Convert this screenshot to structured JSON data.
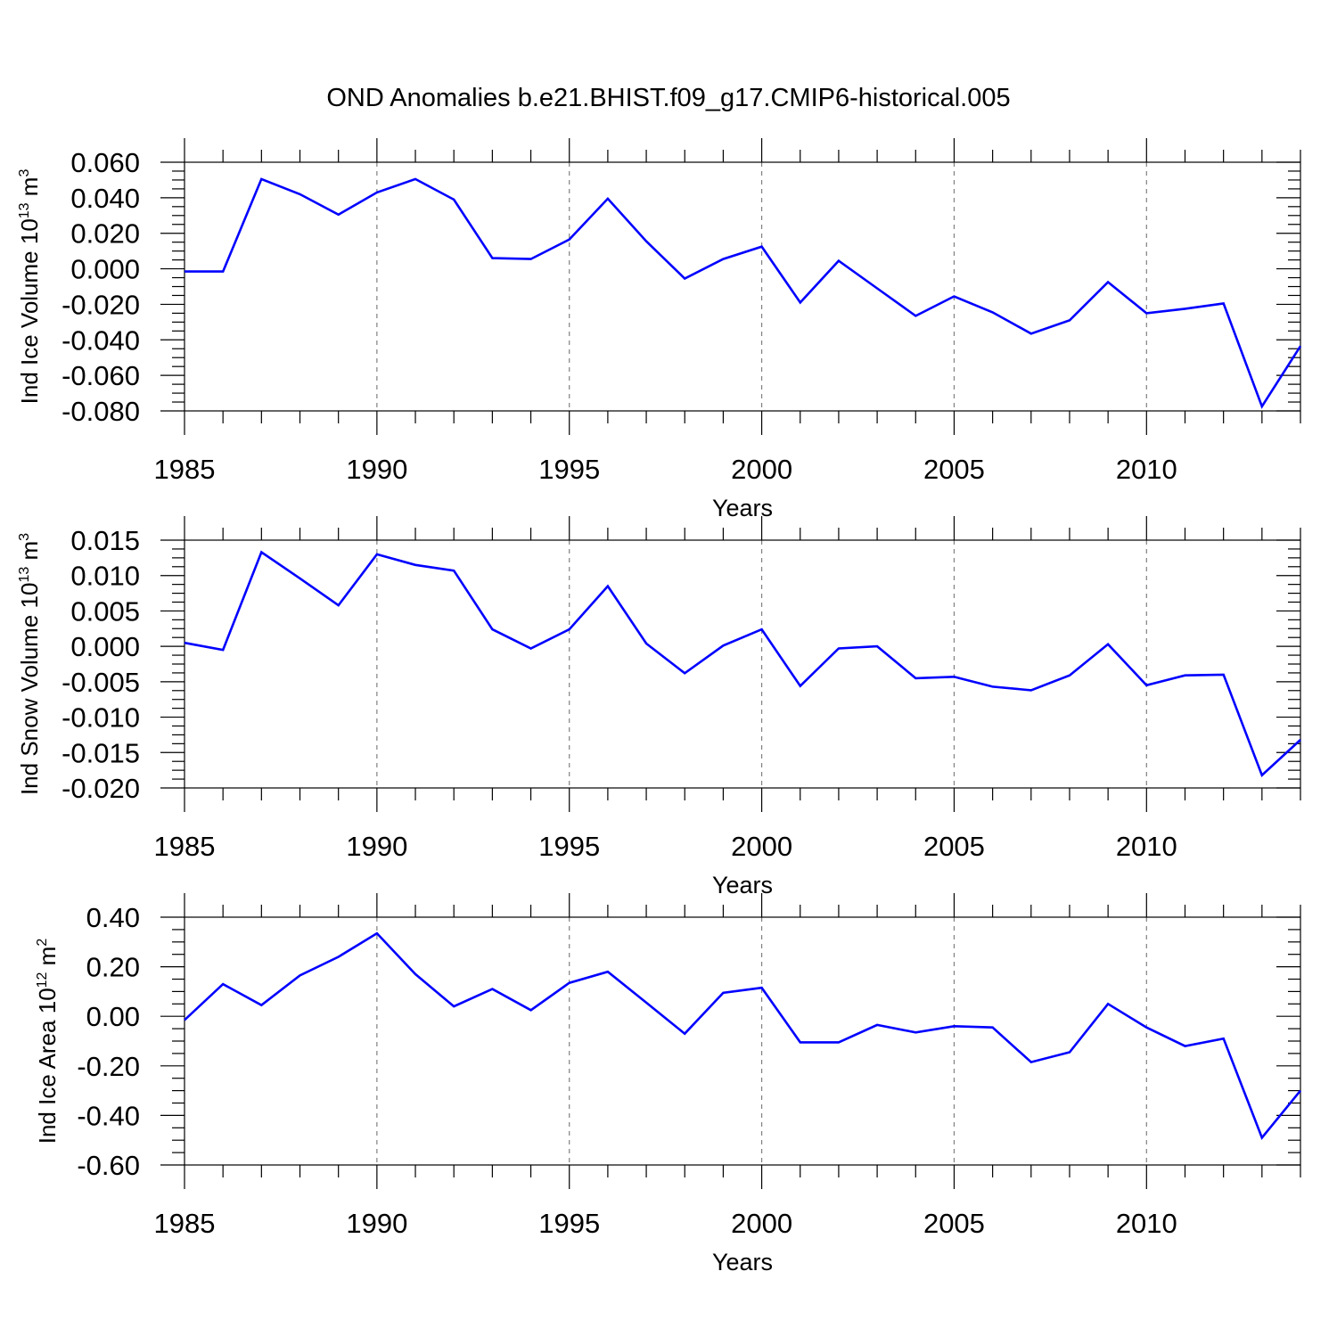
{
  "title": "OND Anomalies b.e21.BHIST.f09_g17.CMIP6-historical.005",
  "style": {
    "line_color": "#0000ff",
    "axis_color": "#000000",
    "grid_color": "#808080"
  },
  "chart_data": [
    {
      "type": "line",
      "ylabel": "Ind Ice Volume 10",
      "ylabel_exp": "13",
      "ylabel_unit": " m",
      "ylabel_unit_exp": "3",
      "xlabel": "Years",
      "xlim": [
        1985,
        2014
      ],
      "ylim": [
        -0.08,
        0.06
      ],
      "x_ticks": [
        "1985",
        "1990",
        "1995",
        "2000",
        "2005",
        "2010"
      ],
      "y_ticks": [
        "0.060",
        "0.040",
        "0.020",
        "0.000",
        "-0.020",
        "-0.040",
        "-0.060",
        "-0.080"
      ],
      "grid": "vertical dashed at 1990, 1995, 2000, 2005, 2010",
      "x": [
        1985,
        1986,
        1987,
        1988,
        1989,
        1990,
        1991,
        1992,
        1993,
        1994,
        1995,
        1996,
        1997,
        1998,
        1999,
        2000,
        2001,
        2002,
        2003,
        2004,
        2005,
        2006,
        2007,
        2008,
        2009,
        2010,
        2011,
        2012,
        2013,
        2014
      ],
      "values": [
        -0.0015,
        -0.0015,
        0.0505,
        0.042,
        0.0305,
        0.043,
        0.0505,
        0.039,
        0.006,
        0.0055,
        0.0165,
        0.0395,
        0.0155,
        -0.0055,
        0.0055,
        0.0125,
        -0.019,
        0.0045,
        -0.011,
        -0.0265,
        -0.0155,
        -0.0245,
        -0.0365,
        -0.029,
        -0.0075,
        -0.025,
        -0.0225,
        -0.0195,
        -0.0775,
        -0.0435
      ]
    },
    {
      "type": "line",
      "ylabel": "Ind Snow Volume 10",
      "ylabel_exp": "13",
      "ylabel_unit": " m",
      "ylabel_unit_exp": "3",
      "xlabel": "Years",
      "xlim": [
        1985,
        2014
      ],
      "ylim": [
        -0.02,
        0.015
      ],
      "x_ticks": [
        "1985",
        "1990",
        "1995",
        "2000",
        "2005",
        "2010"
      ],
      "y_ticks": [
        "0.015",
        "0.010",
        "0.005",
        "0.000",
        "-0.005",
        "-0.010",
        "-0.015",
        "-0.020"
      ],
      "grid": "vertical dashed at 1990, 1995, 2000, 2005, 2010",
      "x": [
        1985,
        1986,
        1987,
        1988,
        1989,
        1990,
        1991,
        1992,
        1993,
        1994,
        1995,
        1996,
        1997,
        1998,
        1999,
        2000,
        2001,
        2002,
        2003,
        2004,
        2005,
        2006,
        2007,
        2008,
        2009,
        2010,
        2011,
        2012,
        2013,
        2014
      ],
      "values": [
        0.0005,
        -0.0005,
        0.0133,
        0.0096,
        0.0058,
        0.013,
        0.0115,
        0.0107,
        0.0024,
        -0.0003,
        0.0024,
        0.0085,
        0.0004,
        -0.0038,
        0.0001,
        0.0024,
        -0.0056,
        -0.0003,
        0.0,
        -0.0045,
        -0.0043,
        -0.0057,
        -0.0062,
        -0.0041,
        0.0003,
        -0.0055,
        -0.0041,
        -0.004,
        -0.0182,
        -0.0132
      ]
    },
    {
      "type": "line",
      "ylabel": "Ind Ice Area 10",
      "ylabel_exp": "12",
      "ylabel_unit": " m",
      "ylabel_unit_exp": "2",
      "xlabel": "Years",
      "xlim": [
        1985,
        2014
      ],
      "ylim": [
        -0.6,
        0.4
      ],
      "x_ticks": [
        "1985",
        "1990",
        "1995",
        "2000",
        "2005",
        "2010"
      ],
      "y_ticks": [
        "0.40",
        "0.20",
        "0.00",
        "-0.20",
        "-0.40",
        "-0.60"
      ],
      "grid": "vertical dashed at 1990, 1995, 2000, 2005, 2010",
      "x": [
        1985,
        1986,
        1987,
        1988,
        1989,
        1990,
        1991,
        1992,
        1993,
        1994,
        1995,
        1996,
        1997,
        1998,
        1999,
        2000,
        2001,
        2002,
        2003,
        2004,
        2005,
        2006,
        2007,
        2008,
        2009,
        2010,
        2011,
        2012,
        2013,
        2014
      ],
      "values": [
        -0.015,
        0.13,
        0.045,
        0.165,
        0.24,
        0.335,
        0.17,
        0.04,
        0.11,
        0.025,
        0.135,
        0.18,
        0.055,
        -0.07,
        0.095,
        0.115,
        -0.105,
        -0.105,
        -0.035,
        -0.065,
        -0.04,
        -0.045,
        -0.185,
        -0.145,
        0.05,
        -0.045,
        -0.12,
        -0.09,
        -0.49,
        -0.3
      ]
    }
  ]
}
